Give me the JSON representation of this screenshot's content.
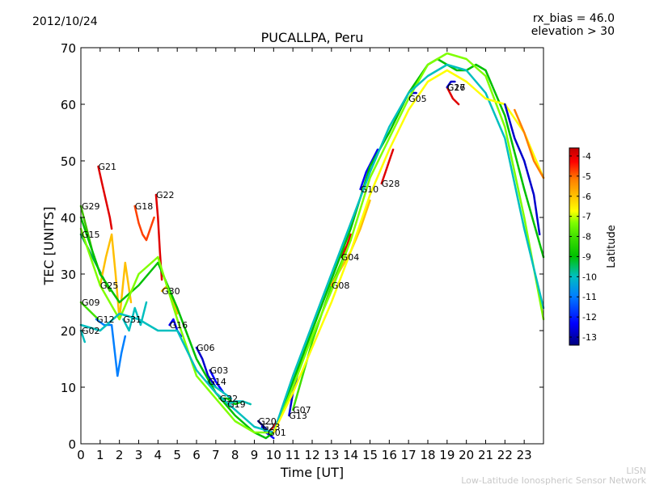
{
  "header": {
    "date": "2012/10/24",
    "rx_bias": "rx_bias = 46.0",
    "elevation": "elevation > 30"
  },
  "footer": {
    "line1": "LISN",
    "line2": "Low-Latitude Ionospheric Sensor Network"
  },
  "chart_data": {
    "type": "line",
    "title": "PUCALLPA, Peru",
    "xlabel": "Time [UT]",
    "ylabel": "TEC [UNITS]",
    "xlim": [
      0,
      24
    ],
    "ylim": [
      0,
      70
    ],
    "x_ticks": [
      0,
      1,
      2,
      3,
      4,
      5,
      6,
      7,
      8,
      9,
      10,
      11,
      12,
      13,
      14,
      15,
      16,
      17,
      18,
      19,
      20,
      21,
      22,
      23
    ],
    "y_ticks": [
      0,
      10,
      20,
      30,
      40,
      50,
      60,
      70
    ],
    "grid": false,
    "colorbar": {
      "label": "Latitude",
      "ticks": [
        -4,
        -5,
        -6,
        -7,
        -8,
        -9,
        -10,
        -11,
        -12,
        -13
      ],
      "range": [
        -13.4,
        -3.6
      ],
      "colors": [
        "#00007f",
        "#0000ff",
        "#007fff",
        "#00bfbf",
        "#00c000",
        "#40e000",
        "#7fff00",
        "#ffff00",
        "#ffbf00",
        "#ff7f00",
        "#ff0000",
        "#bf0000"
      ]
    },
    "series": [
      {
        "name": "G21",
        "color": "#e00000",
        "x": [
          0.9,
          1.1,
          1.3,
          1.5,
          1.6
        ],
        "y": [
          49,
          46,
          43,
          40,
          38
        ]
      },
      {
        "name": "G29",
        "color": "#40c000",
        "x": [
          0.0,
          0.3,
          0.6,
          0.9,
          1.2,
          1.5
        ],
        "y": [
          42,
          38,
          34,
          31,
          29,
          27
        ]
      },
      {
        "name": "G15",
        "color": "#00b050",
        "x": [
          0.0,
          0.3,
          0.6,
          0.9,
          1.2
        ],
        "y": [
          37,
          35,
          33,
          31,
          29
        ]
      },
      {
        "name": "G25",
        "color": "#ffbf00",
        "x": [
          1.0,
          1.3,
          1.6,
          1.8,
          2.0,
          2.3,
          2.6
        ],
        "y": [
          28,
          33,
          37,
          30,
          22,
          32,
          25
        ]
      },
      {
        "name": "G09",
        "color": "#40e000",
        "x": [
          0.0,
          0.3,
          0.6,
          0.9
        ],
        "y": [
          25,
          24,
          23,
          22
        ]
      },
      {
        "name": "G12",
        "color": "#007fff",
        "x": [
          0.8,
          1.2,
          1.6,
          1.9,
          2.1,
          2.3
        ],
        "y": [
          22,
          21,
          21,
          12,
          16,
          19
        ]
      },
      {
        "name": "G02",
        "color": "#00bfbf",
        "x": [
          0.0,
          0.2
        ],
        "y": [
          20,
          18
        ]
      },
      {
        "name": "G31",
        "color": "#00bfbf",
        "x": [
          2.2,
          2.5,
          2.8,
          3.1,
          3.4
        ],
        "y": [
          22,
          20,
          24,
          21,
          25
        ]
      },
      {
        "name": "G18",
        "color": "#ff4000",
        "x": [
          2.8,
          3.0,
          3.2,
          3.4,
          3.6,
          3.8
        ],
        "y": [
          42,
          39,
          37,
          36,
          38,
          40
        ]
      },
      {
        "name": "G22",
        "color": "#e00000",
        "x": [
          3.9,
          4.0,
          4.1,
          4.2
        ],
        "y": [
          44,
          40,
          34,
          29
        ]
      },
      {
        "name": "G30",
        "color": "#ffbf00",
        "x": [
          4.2,
          4.5,
          4.8,
          5.0
        ],
        "y": [
          27,
          28,
          25,
          23
        ]
      },
      {
        "name": "G16",
        "color": "#0000ff",
        "x": [
          4.6,
          4.8,
          5.0,
          5.2
        ],
        "y": [
          21,
          22,
          20,
          19
        ]
      },
      {
        "name": "G06",
        "color": "#0000cc",
        "x": [
          6.0,
          6.3,
          6.6,
          7.0
        ],
        "y": [
          17,
          15,
          12,
          10
        ]
      },
      {
        "name": "G03",
        "color": "#0000ff",
        "x": [
          6.7,
          7.0,
          7.4
        ],
        "y": [
          13,
          11,
          9
        ]
      },
      {
        "name": "G14",
        "color": "#00bfbf",
        "x": [
          6.6,
          7.0,
          7.4,
          7.8
        ],
        "y": [
          11,
          10,
          9,
          8
        ]
      },
      {
        "name": "G32",
        "color": "#00c000",
        "x": [
          7.2,
          7.6,
          8.0,
          8.4,
          8.8
        ],
        "y": [
          8,
          8,
          7,
          7.5,
          7
        ]
      },
      {
        "name": "G19",
        "color": "#00bfbf",
        "x": [
          7.6,
          8.0,
          8.4,
          8.8
        ],
        "y": [
          7,
          7.5,
          7.5,
          7
        ]
      },
      {
        "name": "G20",
        "color": "#00007f",
        "x": [
          9.2,
          9.5,
          9.8
        ],
        "y": [
          4,
          3,
          2
        ]
      },
      {
        "name": "G01",
        "color": "#e00000",
        "x": [
          9.7,
          10.0,
          10.2,
          10.3
        ],
        "y": [
          2,
          3,
          4,
          4.5
        ]
      },
      {
        "name": "G23",
        "color": "#0000ff",
        "x": [
          9.4,
          9.6,
          9.8,
          10.0
        ],
        "y": [
          3,
          2,
          1.5,
          1
        ]
      },
      {
        "name": "G13",
        "color": "#0000cc",
        "x": [
          10.8,
          11.0,
          11.3,
          11.6
        ],
        "y": [
          5,
          9,
          13,
          16
        ]
      },
      {
        "name": "G07",
        "color": "#40e000",
        "x": [
          11.0,
          11.5,
          12.0,
          12.5,
          13.0,
          13.5,
          14.0
        ],
        "y": [
          6,
          12,
          18,
          23,
          28,
          32,
          36
        ]
      },
      {
        "name": "G08",
        "color": "#ffbf00",
        "x": [
          13.0,
          13.5,
          14.0,
          14.5,
          15.0
        ],
        "y": [
          28,
          31,
          34,
          38,
          43
        ]
      },
      {
        "name": "G04",
        "color": "#e00000",
        "x": [
          13.5,
          13.8,
          14.0
        ],
        "y": [
          33,
          35,
          37
        ]
      },
      {
        "name": "G10",
        "color": "#0000ff",
        "x": [
          14.5,
          14.8,
          15.1,
          15.4
        ],
        "y": [
          45,
          48,
          50,
          52
        ]
      },
      {
        "name": "G28",
        "color": "#e00000",
        "x": [
          15.6,
          15.8,
          16.0,
          16.2
        ],
        "y": [
          46,
          48,
          50,
          52
        ]
      },
      {
        "name": "G05",
        "color": "#0000cc",
        "x": [
          17.0,
          17.2,
          17.4
        ],
        "y": [
          61,
          62,
          62
        ]
      },
      {
        "name": "G17",
        "color": "#e00000",
        "x": [
          19.0,
          19.3,
          19.6
        ],
        "y": [
          63,
          61,
          60
        ]
      },
      {
        "name": "G26",
        "color": "#0000cc",
        "x": [
          19.0,
          19.2,
          19.4
        ],
        "y": [
          63,
          64,
          64
        ]
      },
      {
        "name": "",
        "color": "#00c000",
        "x": [
          0.0,
          1.0,
          2.0,
          3.0,
          4.0,
          5.0,
          6.0,
          7.0,
          8.0,
          9.0,
          9.6,
          10.0,
          11.0,
          12.0,
          13.0,
          14.0,
          15.0,
          16.0,
          17.0,
          18.0,
          18.5,
          19.0,
          19.5,
          20.0,
          20.5,
          21.0,
          22.0,
          23.0,
          24.0
        ],
        "y": [
          40,
          30,
          25,
          28,
          32,
          24,
          15,
          9,
          5,
          2,
          1,
          2,
          11,
          20,
          29,
          38,
          49,
          55,
          62,
          67,
          68,
          67,
          66,
          66,
          67,
          66,
          58,
          45,
          33
        ]
      },
      {
        "name": "",
        "color": "#7fff00",
        "x": [
          0.0,
          1.0,
          2.0,
          3.0,
          4.0,
          5.0,
          6.0,
          7.0,
          8.0,
          9.0,
          10.0,
          11.0,
          12.0,
          13.0,
          14.0,
          15.0,
          16.0,
          17.0,
          18.0,
          19.0,
          20.0,
          21.0,
          22.0,
          23.0,
          24.0
        ],
        "y": [
          38,
          28,
          22,
          30,
          33,
          22,
          12,
          8,
          4,
          2,
          2,
          10,
          19,
          27,
          36,
          47,
          54,
          61,
          67,
          69,
          68,
          65,
          56,
          40,
          22
        ]
      },
      {
        "name": "",
        "color": "#00bfbf",
        "x": [
          0.0,
          1.0,
          2.0,
          3.0,
          4.0,
          5.0,
          6.0,
          7.0,
          8.0,
          9.0,
          10.0,
          11.0,
          12.0,
          13.0,
          14.0,
          15.0,
          16.0,
          17.0,
          18.0,
          19.0,
          20.0,
          21.0,
          22.0,
          23.0,
          24.0
        ],
        "y": [
          21,
          20,
          23,
          22,
          20,
          20,
          13,
          9,
          6,
          3,
          2,
          12,
          21,
          30,
          39,
          48,
          56,
          62,
          65,
          67,
          66,
          62,
          54,
          38,
          24
        ]
      },
      {
        "name": "",
        "color": "#ffff00",
        "x": [
          10.0,
          11.0,
          12.0,
          13.0,
          14.0,
          15.0,
          16.0,
          17.0,
          18.0,
          19.0,
          20.0,
          21.0,
          22.0,
          23.0,
          24.0
        ],
        "y": [
          2,
          9,
          17,
          25,
          34,
          44,
          52,
          59,
          64,
          66,
          64,
          61,
          60,
          55,
          47
        ]
      },
      {
        "name": "",
        "color": "#ff7f00",
        "x": [
          22.5,
          23.0,
          23.5,
          24.0
        ],
        "y": [
          59,
          55,
          50,
          47
        ]
      },
      {
        "name": "",
        "color": "#0000cc",
        "x": [
          22.0,
          22.5,
          23.0,
          23.5,
          23.8
        ],
        "y": [
          60,
          54,
          50,
          44,
          37
        ]
      }
    ]
  }
}
